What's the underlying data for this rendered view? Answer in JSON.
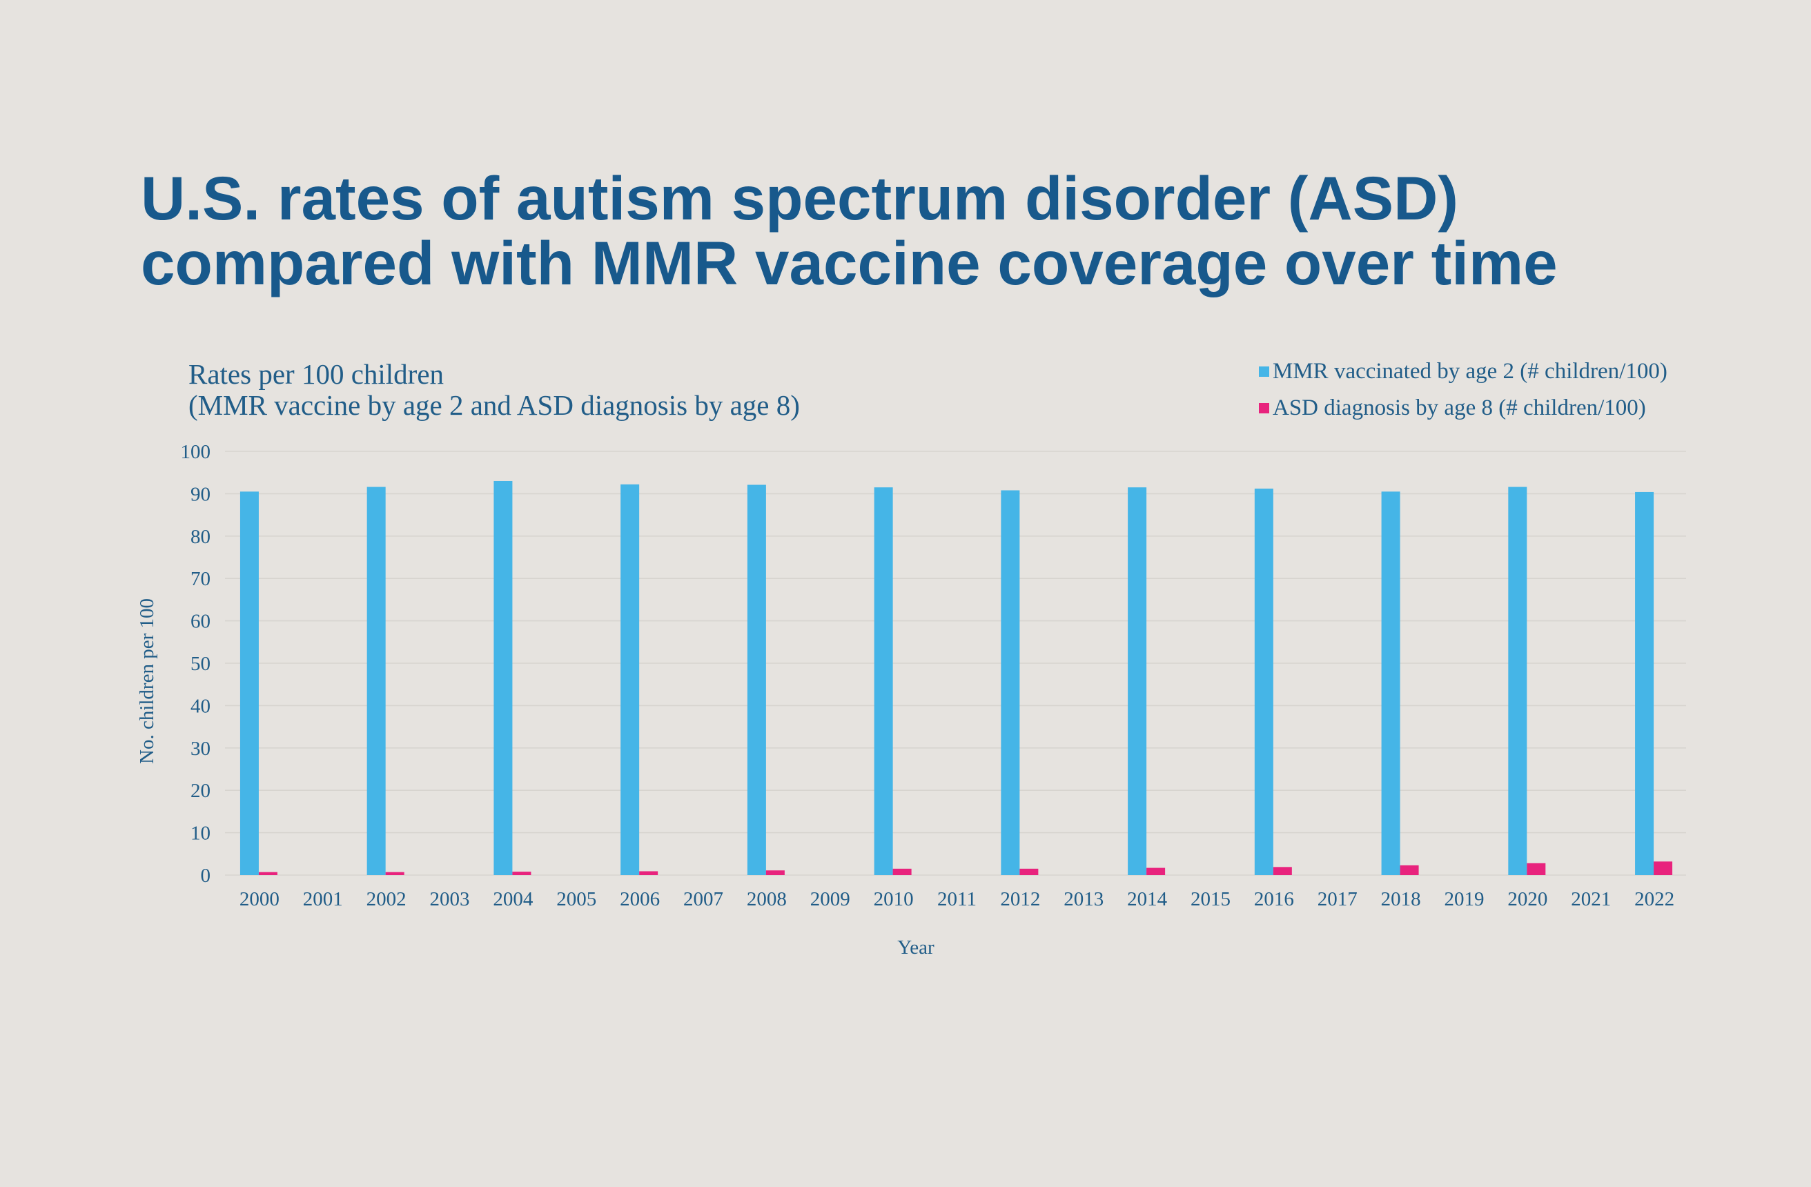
{
  "theme": {
    "background": "#e6e3df",
    "title_color": "#18598c",
    "text_color": "#215d88",
    "grid_color": "#d7d4cf"
  },
  "chart_data": {
    "type": "bar",
    "title": "U.S. rates of autism spectrum disorder (ASD) compared with MMR vaccine coverage over time",
    "subtitle": [
      "Rates per 100 children",
      "(MMR vaccine by age 2 and ASD diagnosis by age 8)"
    ],
    "xlabel": "Year",
    "ylabel": "No. children per 100",
    "ylim": [
      0,
      100
    ],
    "yticks": [
      0,
      10,
      20,
      30,
      40,
      50,
      60,
      70,
      80,
      90,
      100
    ],
    "grid": true,
    "legend_position": "top-right",
    "categories": [
      "2000",
      "2001",
      "2002",
      "2003",
      "2004",
      "2005",
      "2006",
      "2007",
      "2008",
      "2009",
      "2010",
      "2011",
      "2012",
      "2013",
      "2014",
      "2015",
      "2016",
      "2017",
      "2018",
      "2019",
      "2020",
      "2021",
      "2022"
    ],
    "series": [
      {
        "name": "MMR vaccinated by age 2 (# children/100)",
        "color": "#45b5e7",
        "values": [
          90.5,
          null,
          91.6,
          null,
          93.0,
          null,
          92.2,
          null,
          92.1,
          null,
          91.5,
          null,
          90.8,
          null,
          91.5,
          null,
          91.2,
          null,
          90.5,
          null,
          91.6,
          null,
          90.4
        ]
      },
      {
        "name": "ASD diagnosis by age 8 (# children/100)",
        "color": "#e8237d",
        "values": [
          0.7,
          null,
          0.7,
          null,
          0.8,
          null,
          0.9,
          null,
          1.1,
          null,
          1.5,
          null,
          1.5,
          null,
          1.7,
          null,
          1.9,
          null,
          2.3,
          null,
          2.8,
          null,
          3.2
        ]
      }
    ]
  }
}
